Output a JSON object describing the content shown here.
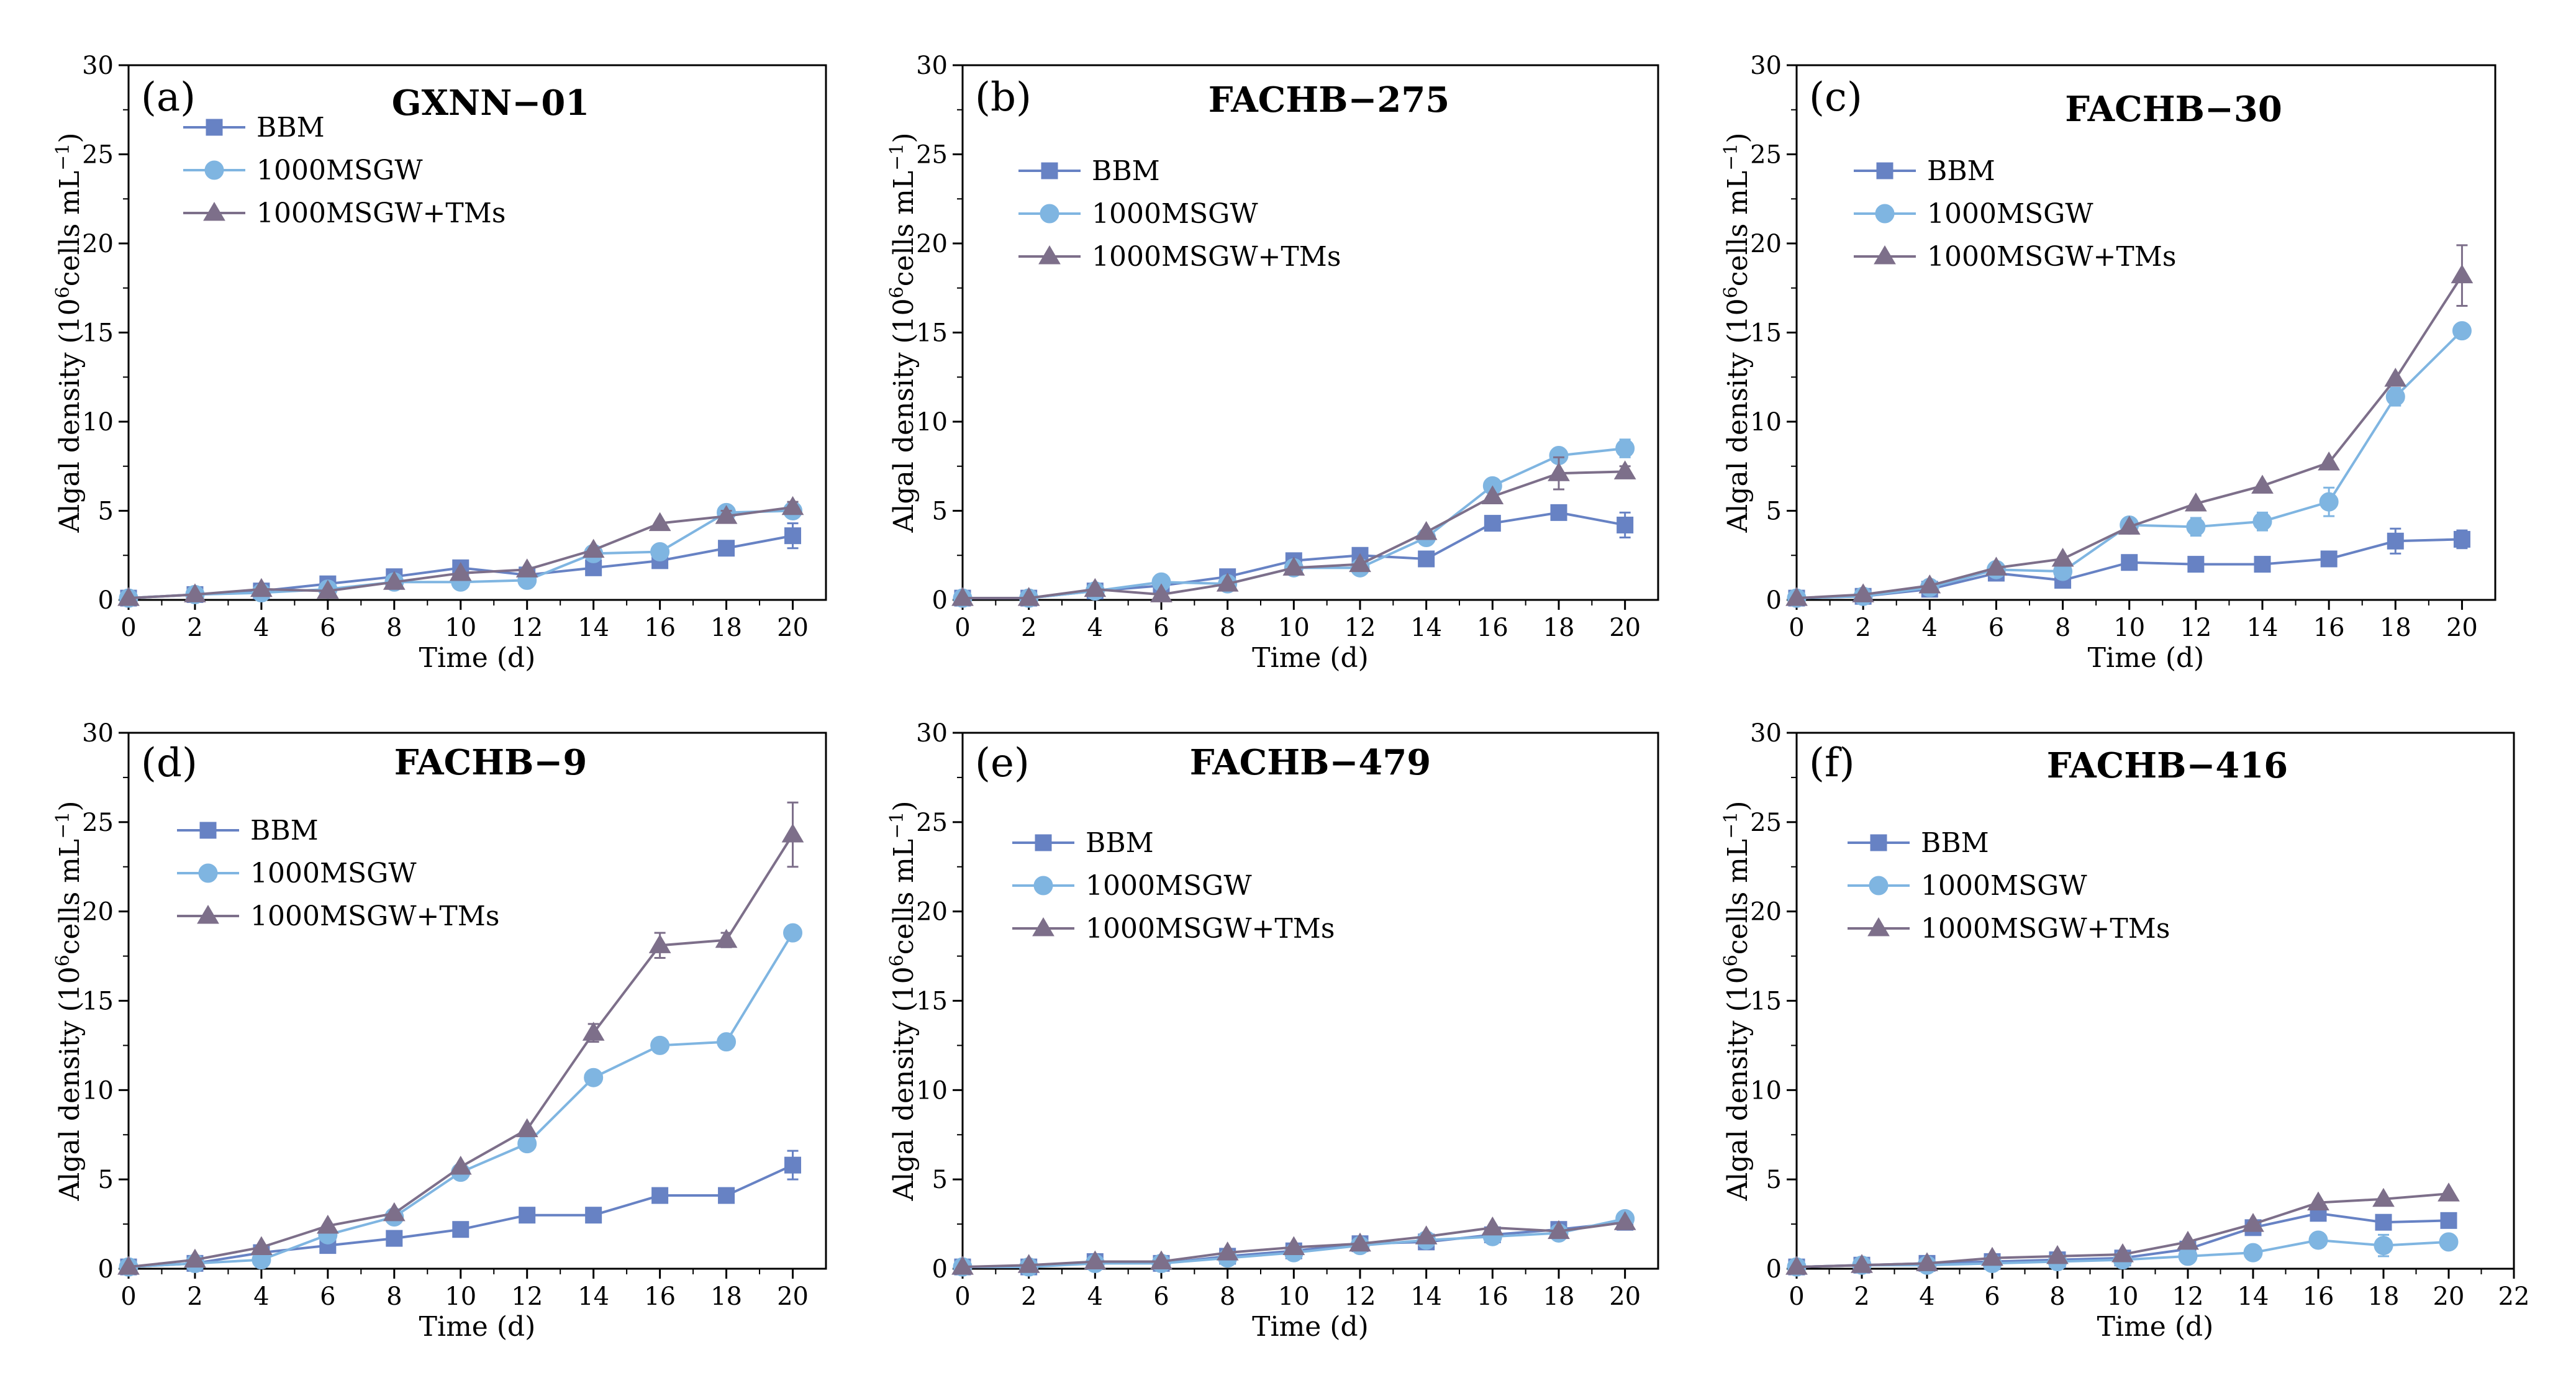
{
  "figure": {
    "colors": {
      "BBM": "#6782c4",
      "1000MSGW": "#7fb5e1",
      "1000MSGW+TMs": "#7d6f8a",
      "axis": "#000000"
    }
  },
  "chart_data": [
    {
      "type": "line",
      "panel": "(a)",
      "title": "GXNN−01",
      "xlabel": "Time (d)",
      "ylabel_main": "Algal density (10",
      "ylabel_exp": "6",
      "ylabel_tail": "cells mL",
      "ylabel_unit_exp": "−1",
      "ylabel_close": ")",
      "xlim": [
        0,
        21
      ],
      "ylim": [
        0,
        30
      ],
      "xticks": [
        0,
        2,
        4,
        6,
        8,
        10,
        12,
        14,
        16,
        18,
        20
      ],
      "xtick_labels": [
        "0",
        "2",
        "4",
        "6",
        "8",
        "10",
        "12",
        "14",
        "16",
        "18",
        "20"
      ],
      "yticks": [
        0,
        5,
        10,
        15,
        20,
        25,
        30
      ],
      "ytick_labels": [
        "0",
        "5",
        "10",
        "15",
        "20",
        "25",
        "30"
      ],
      "legend_position": "upper-left",
      "x": [
        0,
        2,
        4,
        6,
        8,
        10,
        12,
        14,
        16,
        18,
        20
      ],
      "series": [
        {
          "name": "BBM",
          "marker": "square",
          "values": [
            0.1,
            0.3,
            0.5,
            0.9,
            1.3,
            1.8,
            1.4,
            1.8,
            2.2,
            2.9,
            3.6
          ],
          "errors": [
            0,
            0,
            0,
            0,
            0,
            0,
            0,
            0,
            0,
            0,
            0.7
          ]
        },
        {
          "name": "1000MSGW",
          "marker": "circle",
          "values": [
            0.1,
            0.3,
            0.4,
            0.6,
            1.0,
            1.0,
            1.1,
            2.6,
            2.7,
            4.9,
            5.0
          ],
          "errors": [
            0,
            0,
            0,
            0,
            0,
            0,
            0,
            0,
            0,
            0,
            0.3
          ]
        },
        {
          "name": "1000MSGW+TMs",
          "marker": "triangle",
          "values": [
            0.1,
            0.3,
            0.6,
            0.5,
            1.0,
            1.5,
            1.7,
            2.8,
            4.3,
            4.7,
            5.2
          ],
          "errors": [
            0,
            0,
            0,
            0,
            0,
            0,
            0,
            0,
            0,
            0.3,
            0.3
          ]
        }
      ]
    },
    {
      "type": "line",
      "panel": "(b)",
      "title": "FACHB−275",
      "xlabel": "Time (d)",
      "ylabel_main": "Algal density (10",
      "ylabel_exp": "6",
      "ylabel_tail": "cells mL",
      "ylabel_unit_exp": "−1",
      "ylabel_close": ")",
      "xlim": [
        0,
        21
      ],
      "ylim": [
        0,
        30
      ],
      "xticks": [
        0,
        2,
        4,
        6,
        8,
        10,
        12,
        14,
        16,
        18,
        20
      ],
      "xtick_labels": [
        "0",
        "2",
        "4",
        "6",
        "8",
        "10",
        "12",
        "14",
        "16",
        "18",
        "20"
      ],
      "yticks": [
        0,
        5,
        10,
        15,
        20,
        25,
        30
      ],
      "ytick_labels": [
        "0",
        "5",
        "10",
        "15",
        "20",
        "25",
        "30"
      ],
      "legend_position": "upper-left",
      "x": [
        0,
        2,
        4,
        6,
        8,
        10,
        12,
        14,
        16,
        18,
        20
      ],
      "series": [
        {
          "name": "BBM",
          "marker": "square",
          "values": [
            0.1,
            0.1,
            0.5,
            0.8,
            1.3,
            2.2,
            2.5,
            2.3,
            4.3,
            4.9,
            4.2
          ],
          "errors": [
            0,
            0,
            0,
            0,
            0,
            0,
            0,
            0,
            0,
            0,
            0.7
          ]
        },
        {
          "name": "1000MSGW",
          "marker": "circle",
          "values": [
            0.1,
            0.1,
            0.5,
            1.0,
            0.9,
            1.8,
            1.8,
            3.5,
            6.4,
            8.1,
            8.5
          ],
          "errors": [
            0,
            0,
            0,
            0,
            0,
            0,
            0,
            0,
            0,
            0,
            0.5
          ]
        },
        {
          "name": "1000MSGW+TMs",
          "marker": "triangle",
          "values": [
            0.1,
            0.1,
            0.6,
            0.3,
            0.9,
            1.8,
            2.0,
            3.8,
            5.8,
            7.1,
            7.2
          ],
          "errors": [
            0,
            0,
            0,
            0,
            0,
            0,
            0,
            0,
            0,
            0.9,
            0.3
          ]
        }
      ]
    },
    {
      "type": "line",
      "panel": "(c)",
      "title": "FACHB−30",
      "xlabel": "Time (d)",
      "ylabel_main": "Algal density (10",
      "ylabel_exp": "6",
      "ylabel_tail": "cells mL",
      "ylabel_unit_exp": "−1",
      "ylabel_close": ")",
      "xlim": [
        0,
        21
      ],
      "ylim": [
        0,
        30
      ],
      "xticks": [
        0,
        2,
        4,
        6,
        8,
        10,
        12,
        14,
        16,
        18,
        20
      ],
      "xtick_labels": [
        "0",
        "2",
        "4",
        "6",
        "8",
        "10",
        "12",
        "14",
        "16",
        "18",
        "20"
      ],
      "yticks": [
        0,
        5,
        10,
        15,
        20,
        25,
        30
      ],
      "ytick_labels": [
        "0",
        "5",
        "10",
        "15",
        "20",
        "25",
        "30"
      ],
      "legend_position": "upper-left",
      "x": [
        0,
        2,
        4,
        6,
        8,
        10,
        12,
        14,
        16,
        18,
        20
      ],
      "series": [
        {
          "name": "BBM",
          "marker": "square",
          "values": [
            0.1,
            0.2,
            0.6,
            1.5,
            1.1,
            2.1,
            2.0,
            2.0,
            2.3,
            3.3,
            3.4
          ],
          "errors": [
            0,
            0,
            0,
            0,
            0,
            0,
            0,
            0,
            0,
            0.7,
            0.5
          ]
        },
        {
          "name": "1000MSGW",
          "marker": "circle",
          "values": [
            0.1,
            0.2,
            0.7,
            1.7,
            1.6,
            4.2,
            4.1,
            4.4,
            5.5,
            11.4,
            15.1
          ],
          "errors": [
            0,
            0,
            0,
            0,
            0,
            0,
            0.5,
            0.5,
            0.8,
            0.5,
            0
          ]
        },
        {
          "name": "1000MSGW+TMs",
          "marker": "triangle",
          "values": [
            0.1,
            0.3,
            0.8,
            1.8,
            2.3,
            4.1,
            5.4,
            6.4,
            7.7,
            12.4,
            18.2
          ],
          "errors": [
            0,
            0,
            0,
            0,
            0,
            0,
            0,
            0,
            0,
            0,
            1.7
          ]
        }
      ]
    },
    {
      "type": "line",
      "panel": "(d)",
      "title": "FACHB−9",
      "xlabel": "Time (d)",
      "ylabel_main": "Algal density (10",
      "ylabel_exp": "6",
      "ylabel_tail": "cells mL",
      "ylabel_unit_exp": "−1",
      "ylabel_close": ")",
      "xlim": [
        0,
        21
      ],
      "ylim": [
        0,
        30
      ],
      "xticks": [
        0,
        2,
        4,
        6,
        8,
        10,
        12,
        14,
        16,
        18,
        20
      ],
      "xtick_labels": [
        "0",
        "2",
        "4",
        "6",
        "8",
        "10",
        "12",
        "14",
        "16",
        "18",
        "20"
      ],
      "yticks": [
        0,
        5,
        10,
        15,
        20,
        25,
        30
      ],
      "ytick_labels": [
        "0",
        "5",
        "10",
        "15",
        "20",
        "25",
        "30"
      ],
      "legend_position": "upper-left",
      "x": [
        0,
        2,
        4,
        6,
        8,
        10,
        12,
        14,
        16,
        18,
        20
      ],
      "series": [
        {
          "name": "BBM",
          "marker": "square",
          "values": [
            0.1,
            0.3,
            0.9,
            1.3,
            1.7,
            2.2,
            3.0,
            3.0,
            4.1,
            4.1,
            5.8
          ],
          "errors": [
            0,
            0,
            0,
            0,
            0,
            0,
            0,
            0,
            0,
            0,
            0.8
          ]
        },
        {
          "name": "1000MSGW",
          "marker": "circle",
          "values": [
            0.1,
            0.3,
            0.5,
            1.9,
            2.9,
            5.4,
            7.0,
            10.7,
            12.5,
            12.7,
            18.8
          ],
          "errors": [
            0,
            0,
            0,
            0,
            0,
            0,
            0,
            0,
            0,
            0,
            0
          ]
        },
        {
          "name": "1000MSGW+TMs",
          "marker": "triangle",
          "values": [
            0.1,
            0.5,
            1.2,
            2.4,
            3.1,
            5.7,
            7.8,
            13.2,
            18.1,
            18.4,
            24.3
          ],
          "errors": [
            0,
            0,
            0,
            0,
            0,
            0,
            0,
            0.5,
            0.7,
            0.4,
            1.8
          ]
        }
      ]
    },
    {
      "type": "line",
      "panel": "(e)",
      "title": "FACHB−479",
      "xlabel": "Time (d)",
      "ylabel_main": "Algal density (10",
      "ylabel_exp": "6",
      "ylabel_tail": "cells mL",
      "ylabel_unit_exp": "−1",
      "ylabel_close": ")",
      "xlim": [
        0,
        21
      ],
      "ylim": [
        0,
        30
      ],
      "xticks": [
        0,
        2,
        4,
        6,
        8,
        10,
        12,
        14,
        16,
        18,
        20
      ],
      "xtick_labels": [
        "0",
        "2",
        "4",
        "6",
        "8",
        "10",
        "12",
        "14",
        "16",
        "18",
        "20"
      ],
      "yticks": [
        0,
        5,
        10,
        15,
        20,
        25,
        30
      ],
      "ytick_labels": [
        "0",
        "5",
        "10",
        "15",
        "20",
        "25",
        "30"
      ],
      "legend_position": "upper-left",
      "x": [
        0,
        2,
        4,
        6,
        8,
        10,
        12,
        14,
        16,
        18,
        20
      ],
      "series": [
        {
          "name": "BBM",
          "marker": "square",
          "values": [
            0.1,
            0.1,
            0.4,
            0.3,
            0.7,
            1.0,
            1.4,
            1.5,
            1.9,
            2.2,
            2.6
          ],
          "errors": [
            0,
            0,
            0,
            0,
            0,
            0,
            0,
            0,
            0,
            0,
            0
          ]
        },
        {
          "name": "1000MSGW",
          "marker": "circle",
          "values": [
            0.1,
            0.1,
            0.3,
            0.3,
            0.6,
            0.9,
            1.3,
            1.6,
            1.8,
            2.0,
            2.8
          ],
          "errors": [
            0,
            0,
            0,
            0,
            0,
            0,
            0,
            0,
            0,
            0,
            0
          ]
        },
        {
          "name": "1000MSGW+TMs",
          "marker": "triangle",
          "values": [
            0.1,
            0.2,
            0.4,
            0.4,
            0.9,
            1.2,
            1.4,
            1.8,
            2.3,
            2.1,
            2.6
          ],
          "errors": [
            0,
            0,
            0,
            0,
            0,
            0,
            0,
            0,
            0,
            0,
            0
          ]
        }
      ]
    },
    {
      "type": "line",
      "panel": "(f)",
      "title": "FACHB−416",
      "xlabel": "Time (d)",
      "ylabel_main": "Algal density (10",
      "ylabel_exp": "6",
      "ylabel_tail": "cells mL",
      "ylabel_unit_exp": "−1",
      "ylabel_close": ")",
      "xlim": [
        0,
        22
      ],
      "ylim": [
        0,
        30
      ],
      "xticks": [
        0,
        2,
        4,
        6,
        8,
        10,
        12,
        14,
        16,
        18,
        20,
        22
      ],
      "xtick_labels": [
        "0",
        "2",
        "4",
        "6",
        "8",
        "10",
        "12",
        "14",
        "16",
        "18",
        "20",
        "22"
      ],
      "yticks": [
        0,
        5,
        10,
        15,
        20,
        25,
        30
      ],
      "ytick_labels": [
        "0",
        "5",
        "10",
        "15",
        "20",
        "25",
        "30"
      ],
      "legend_position": "upper-left",
      "x": [
        0,
        2,
        4,
        6,
        8,
        10,
        12,
        14,
        16,
        18,
        20
      ],
      "series": [
        {
          "name": "BBM",
          "marker": "square",
          "values": [
            0.1,
            0.2,
            0.3,
            0.4,
            0.5,
            0.6,
            1.1,
            2.3,
            3.1,
            2.6,
            2.7
          ],
          "errors": [
            0,
            0,
            0,
            0,
            0,
            0,
            0,
            0,
            0,
            0,
            0
          ]
        },
        {
          "name": "1000MSGW",
          "marker": "circle",
          "values": [
            0.1,
            0.2,
            0.2,
            0.3,
            0.4,
            0.5,
            0.7,
            0.9,
            1.6,
            1.3,
            1.5
          ],
          "errors": [
            0,
            0,
            0,
            0,
            0,
            0,
            0,
            0,
            0.4,
            0.6,
            0
          ]
        },
        {
          "name": "1000MSGW+TMs",
          "marker": "triangle",
          "values": [
            0.1,
            0.2,
            0.3,
            0.6,
            0.7,
            0.8,
            1.5,
            2.5,
            3.7,
            3.9,
            4.2
          ],
          "errors": [
            0,
            0,
            0,
            0,
            0,
            0,
            0,
            0,
            0,
            0,
            0
          ]
        }
      ]
    }
  ]
}
